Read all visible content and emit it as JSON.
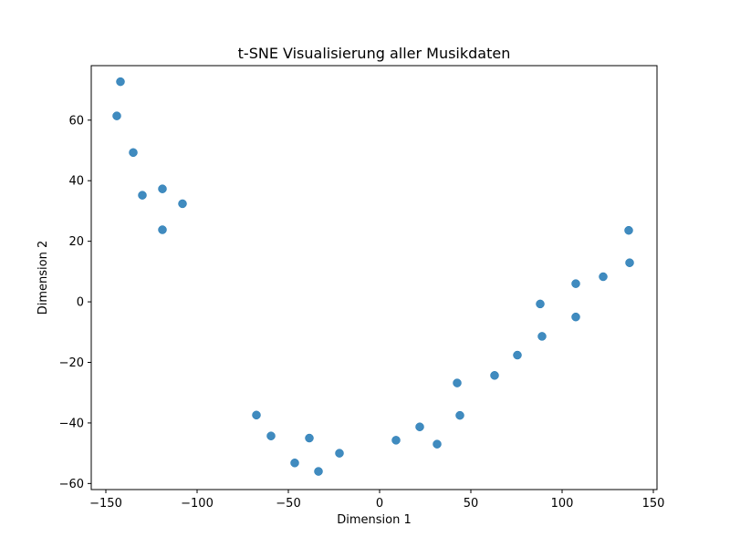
{
  "chart_data": {
    "type": "scatter",
    "title": "t-SNE Visualisierung aller Musikdaten",
    "xlabel": "Dimension 1",
    "ylabel": "Dimension 2",
    "xlim": [
      -158,
      152
    ],
    "ylim": [
      -62,
      78
    ],
    "xticks": [
      -150,
      -100,
      -50,
      0,
      50,
      100,
      150
    ],
    "yticks": [
      -60,
      -40,
      -20,
      0,
      20,
      40,
      60
    ],
    "xtick_labels": [
      "−150",
      "−100",
      "−50",
      "0",
      "50",
      "100",
      "150"
    ],
    "ytick_labels": [
      "−60",
      "−40",
      "−20",
      "0",
      "20",
      "40",
      "60"
    ],
    "grid": false,
    "marker_color": "#1f77b4",
    "points": [
      {
        "x": -142,
        "y": 72.7
      },
      {
        "x": -144,
        "y": 61.4
      },
      {
        "x": -135,
        "y": 49.3
      },
      {
        "x": -130,
        "y": 35.2
      },
      {
        "x": -119,
        "y": 37.3
      },
      {
        "x": -108,
        "y": 32.4
      },
      {
        "x": -119,
        "y": 23.8
      },
      {
        "x": -67.5,
        "y": -37.4
      },
      {
        "x": -59.5,
        "y": -44.3
      },
      {
        "x": -46.5,
        "y": -53.2
      },
      {
        "x": -38.5,
        "y": -45.0
      },
      {
        "x": -33.5,
        "y": -56.0
      },
      {
        "x": -22,
        "y": -50.0
      },
      {
        "x": 9,
        "y": -45.7
      },
      {
        "x": 22,
        "y": -41.3
      },
      {
        "x": 31.5,
        "y": -47.0
      },
      {
        "x": 42.5,
        "y": -26.8
      },
      {
        "x": 44,
        "y": -37.5
      },
      {
        "x": 63,
        "y": -24.3
      },
      {
        "x": 75.5,
        "y": -17.6
      },
      {
        "x": 88,
        "y": -0.7
      },
      {
        "x": 89,
        "y": -11.4
      },
      {
        "x": 107.5,
        "y": 6.0
      },
      {
        "x": 107.5,
        "y": -5.0
      },
      {
        "x": 122.5,
        "y": 8.3
      },
      {
        "x": 136.5,
        "y": 23.6
      },
      {
        "x": 137,
        "y": 12.9
      }
    ]
  }
}
